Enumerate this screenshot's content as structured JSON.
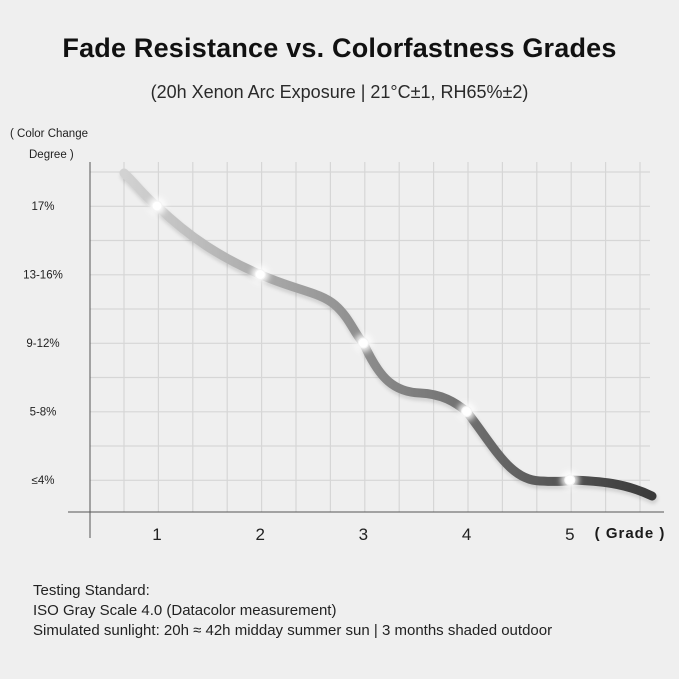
{
  "header": {
    "title": "Fade Resistance vs. Colorfastness Grades",
    "subtitle": "(20h Xenon Arc Exposure | 21°C±1, RH65%±2)"
  },
  "chart_data": {
    "type": "line",
    "title": "Fade Resistance vs. Colorfastness Grades",
    "subtitle": "(20h Xenon Arc Exposure | 21°C±1, RH65%±2)",
    "ylabel_lines": [
      "( Color Change",
      "Degree )"
    ],
    "xlabel": "( Grade )",
    "x_ticks": [
      "1",
      "2",
      "3",
      "4",
      "5"
    ],
    "y_ticks": [
      "≤4%",
      "5-8%",
      "9-12%",
      "13-16%",
      "17%"
    ],
    "series": [
      {
        "points": [
          {
            "x": "1",
            "y": "17%"
          },
          {
            "x": "2",
            "y": "13-16%"
          },
          {
            "x": "3",
            "y": "9-12%"
          },
          {
            "x": "4",
            "y": "5-8%"
          },
          {
            "x": "5",
            "y": "≤4%"
          }
        ]
      }
    ],
    "grid": true,
    "line_color_start": "#d2d2d2",
    "line_color_end": "#3a3a3a",
    "marker_color": "#ffffff"
  },
  "footer": {
    "lines": [
      "Testing Standard:",
      "ISO Gray Scale 4.0 (Datacolor measurement)",
      "Simulated sunlight: 20h ≈ 42h midday summer sun | 3 months shaded outdoor"
    ]
  }
}
